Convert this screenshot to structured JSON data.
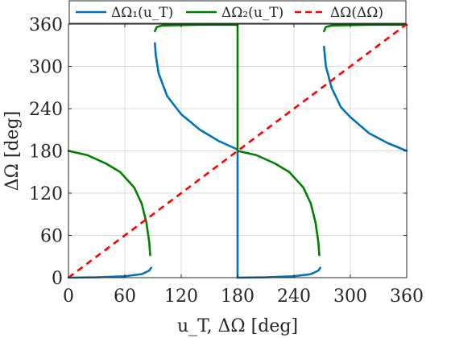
{
  "chart_data": {
    "type": "line",
    "xlabel": "u_T, ΔΩ [deg]",
    "ylabel": "ΔΩ [deg]",
    "xlim": [
      0,
      360
    ],
    "ylim": [
      0,
      360
    ],
    "x_ticks": [
      "0",
      "60",
      "120",
      "180",
      "240",
      "300",
      "360"
    ],
    "y_ticks": [
      "0",
      "60",
      "120",
      "180",
      "240",
      "300",
      "360"
    ],
    "x_tick_values": [
      0,
      60,
      120,
      180,
      240,
      300,
      360
    ],
    "y_tick_values": [
      0,
      60,
      120,
      180,
      240,
      300,
      360
    ],
    "grid": true,
    "legend_position": "top",
    "series": [
      {
        "name": "ΔΩ₁(u_T)",
        "color": "#0072BD",
        "style": "solid",
        "segments": [
          [
            [
              0,
              0
            ],
            [
              30,
              0.5
            ],
            [
              60,
              2
            ],
            [
              78,
              5
            ],
            [
              86,
              10
            ],
            [
              88,
              14
            ]
          ],
          [
            [
              92,
              333
            ],
            [
              93,
              315
            ],
            [
              96,
              290
            ],
            [
              105,
              258
            ],
            [
              120,
              232
            ],
            [
              140,
              210
            ],
            [
              160,
              194
            ],
            [
              180,
              182
            ]
          ],
          [
            [
              180,
              180
            ],
            [
              180,
              0
            ]
          ],
          [
            [
              180,
              0
            ],
            [
              210,
              0.5
            ],
            [
              240,
              2
            ],
            [
              258,
              5
            ],
            [
              266,
              10
            ],
            [
              268,
              14
            ]
          ],
          [
            [
              272,
              328
            ],
            [
              274,
              300
            ],
            [
              280,
              270
            ],
            [
              290,
              242
            ],
            [
              300,
              228
            ],
            [
              320,
              205
            ],
            [
              340,
              191
            ],
            [
              360,
              180
            ]
          ]
        ]
      },
      {
        "name": "ΔΩ₂(u_T)",
        "color": "#008000",
        "style": "solid",
        "segments": [
          [
            [
              0,
              180
            ],
            [
              20,
              174
            ],
            [
              40,
              162
            ],
            [
              55,
              150
            ],
            [
              70,
              128
            ],
            [
              78,
              105
            ],
            [
              83,
              78
            ],
            [
              86,
              50
            ],
            [
              87,
              32
            ]
          ],
          [
            [
              92,
              350
            ],
            [
              94,
              356
            ],
            [
              100,
              358
            ],
            [
              140,
              359
            ],
            [
              179,
              359
            ]
          ],
          [
            [
              180,
              360
            ],
            [
              180,
              180
            ]
          ],
          [
            [
              180,
              180
            ],
            [
              200,
              174
            ],
            [
              220,
              162
            ],
            [
              235,
              150
            ],
            [
              250,
              128
            ],
            [
              258,
              105
            ],
            [
              263,
              78
            ],
            [
              266,
              50
            ],
            [
              267,
              32
            ]
          ],
          [
            [
              272,
              350
            ],
            [
              274,
              356
            ],
            [
              280,
              358
            ],
            [
              320,
              359
            ],
            [
              360,
              359
            ]
          ]
        ]
      },
      {
        "name": "ΔΩ(ΔΩ)",
        "color": "#FF0000",
        "style": "dashed",
        "segments": [
          [
            [
              0,
              0
            ],
            [
              360,
              360
            ]
          ]
        ]
      }
    ]
  }
}
